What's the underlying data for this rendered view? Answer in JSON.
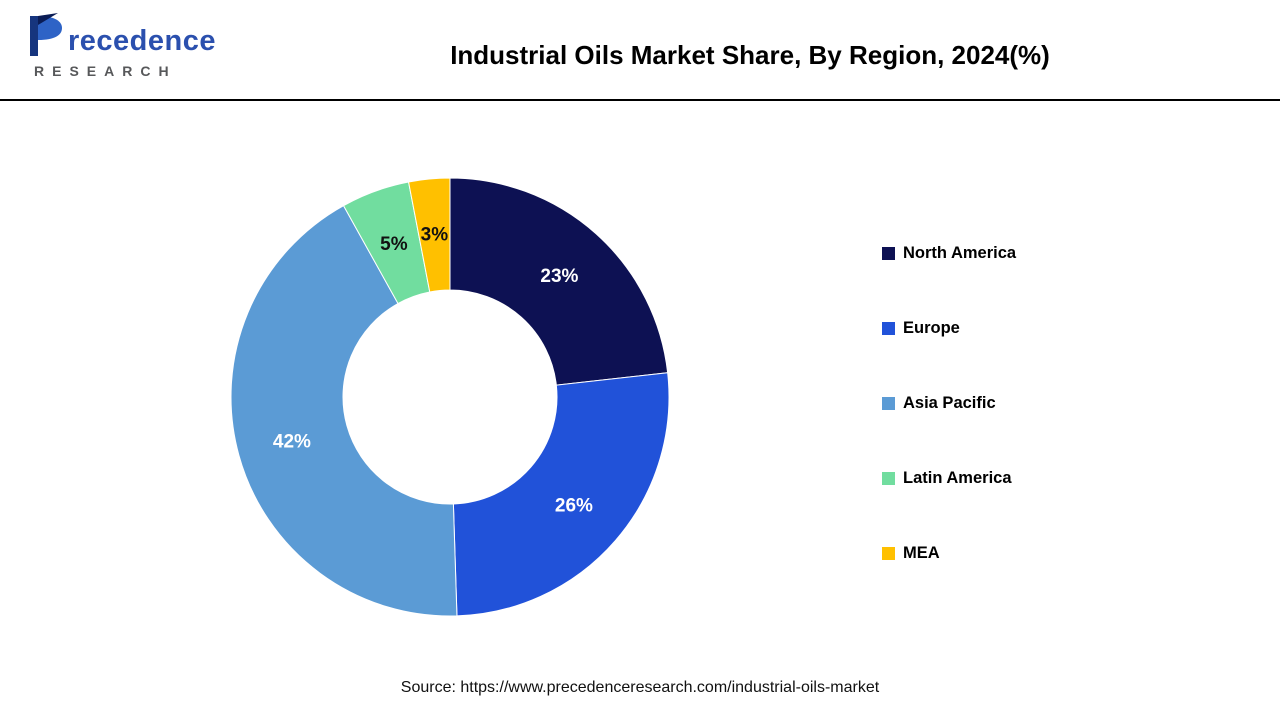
{
  "header": {
    "title": "Industrial Oils Market Share, By Region, 2024(%)"
  },
  "logo": {
    "main": "recedence",
    "sub": "RESEARCH"
  },
  "source": "Source: https://www.precedenceresearch.com/industrial-oils-market",
  "chart_data": {
    "type": "pie",
    "donut": true,
    "title": "Industrial Oils Market Share, By Region, 2024(%)",
    "start_angle_deg": 0,
    "direction": "clockwise",
    "legend_position": "right",
    "series": [
      {
        "name": "North America",
        "value": 23,
        "label": "23%",
        "color": "#0d1153",
        "label_color": "#ffffff"
      },
      {
        "name": "Europe",
        "value": 26,
        "label": "26%",
        "color": "#2152d9",
        "label_color": "#ffffff"
      },
      {
        "name": "Asia Pacific",
        "value": 42,
        "label": "42%",
        "color": "#5b9bd5",
        "label_color": "#ffffff"
      },
      {
        "name": "Latin America",
        "value": 5,
        "label": "5%",
        "color": "#71dd9f",
        "label_color": "#111111"
      },
      {
        "name": "MEA",
        "value": 3,
        "label": "3%",
        "color": "#ffc000",
        "label_color": "#111111"
      }
    ]
  }
}
